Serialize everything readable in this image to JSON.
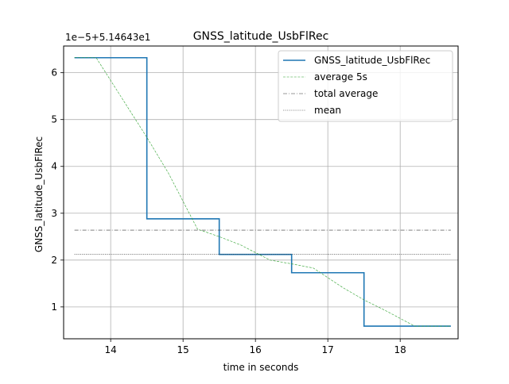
{
  "chart_data": {
    "type": "line",
    "title": "GNSS_latitude_UsbFlRec",
    "xlabel": "time in seconds",
    "ylabel": "GNSS_latitude_UsbFlRec",
    "offset_label": "1e−5+5.14643e1",
    "xlim": [
      13.35,
      18.8
    ],
    "ylim": [
      0.32,
      6.57
    ],
    "xticks": [
      14,
      15,
      16,
      17,
      18
    ],
    "yticks": [
      1,
      2,
      3,
      4,
      5,
      6
    ],
    "grid": true,
    "legend_position": "top-right",
    "series": [
      {
        "name": "GNSS_latitude_UsbFlRec",
        "style": "step",
        "color": "#1f77b4",
        "x": [
          13.5,
          14.5,
          14.5,
          15.5,
          15.5,
          16.5,
          16.5,
          17.5,
          17.5,
          18.7
        ],
        "y": [
          6.32,
          6.32,
          2.88,
          2.88,
          2.12,
          2.12,
          1.73,
          1.73,
          0.59,
          0.59
        ]
      },
      {
        "name": "average 5s",
        "style": "dashed",
        "color": "#2ca02c",
        "x": [
          13.5,
          13.8,
          14.5,
          14.8,
          15.2,
          15.5,
          15.8,
          16.2,
          16.5,
          16.8,
          17.2,
          17.5,
          17.8,
          18.2,
          18.7
        ],
        "y": [
          6.32,
          6.32,
          4.62,
          3.85,
          2.66,
          2.5,
          2.32,
          2.0,
          1.92,
          1.83,
          1.42,
          1.15,
          0.92,
          0.59,
          0.59
        ]
      },
      {
        "name": "total average",
        "style": "dashdot",
        "color": "#333333",
        "x": [
          13.5,
          18.7
        ],
        "y": [
          2.64,
          2.64
        ]
      },
      {
        "name": "mean",
        "style": "dotted",
        "color": "#333333",
        "x": [
          13.5,
          18.7
        ],
        "y": [
          2.12,
          2.12
        ]
      }
    ]
  }
}
